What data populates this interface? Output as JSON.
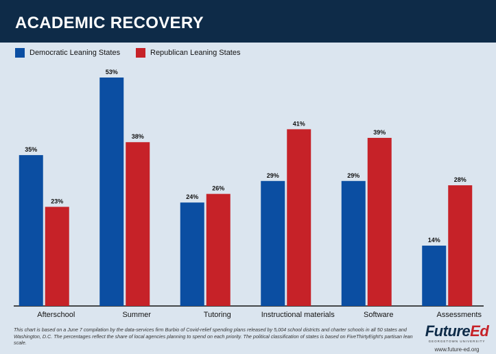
{
  "title": "ACADEMIC RECOVERY",
  "colors": {
    "header_bg": "#0e2b48",
    "background": "#dbe5ef",
    "democratic": "#0b4ea2",
    "republican": "#c62228"
  },
  "chart_data": {
    "type": "bar",
    "title": "ACADEMIC RECOVERY",
    "categories": [
      "Afterschool",
      "Summer",
      "Tutoring",
      "Instructional materials",
      "Software",
      "Assessments"
    ],
    "series": [
      {
        "name": "Democratic Leaning States",
        "values": [
          35,
          53,
          24,
          29,
          29,
          14
        ],
        "labels": [
          "35%",
          "53%",
          "24%",
          "29%",
          "29%",
          "14%"
        ],
        "color": "#0b4ea2"
      },
      {
        "name": "Republican Leaning States",
        "values": [
          23,
          38,
          26,
          41,
          39,
          28
        ],
        "labels": [
          "23%",
          "38%",
          "26%",
          "41%",
          "39%",
          "28%"
        ],
        "color": "#c62228"
      }
    ],
    "ylim": [
      0,
      53
    ],
    "grid": false,
    "legend_position": "top-left"
  },
  "footnote": "This chart is based on a June 7 compilation by the data-services firm Burbio of Covid-relief spending plans released by 5,004 school districts and charter schools in all 50 states and Washington, D.C. The percentages reflect the share of local agencies planning to spend on each priority. The political classification of states is based on FiveThirtyEight's partisan lean scale.",
  "logo": {
    "name_part1": "Future",
    "name_part2": "Ed",
    "subtitle": "GEORGETOWN UNIVERSITY",
    "url": "www.future-ed.org"
  }
}
